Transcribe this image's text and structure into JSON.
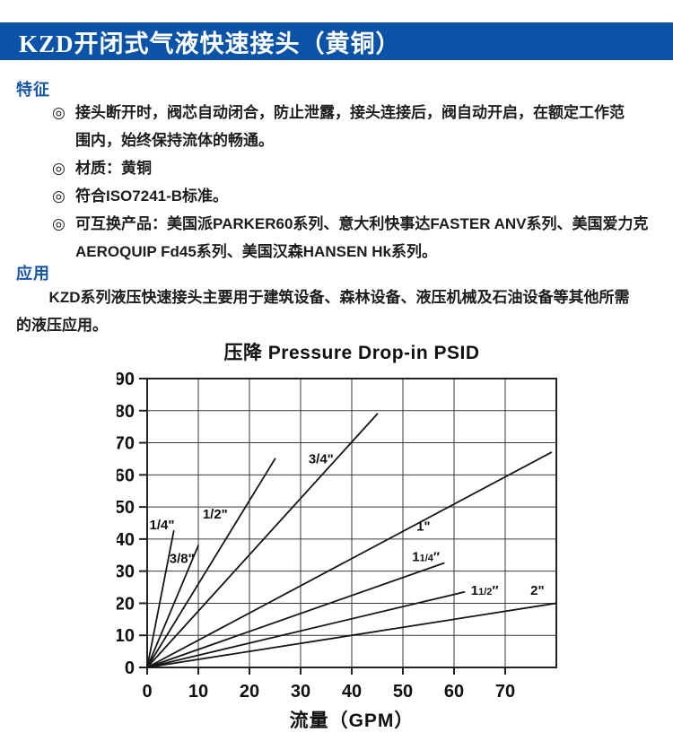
{
  "accent_blue": "#0b53a6",
  "header": {
    "title": "KZD开闭式气液快速接头（黄铜）",
    "bg_color": "#0b53a6",
    "text_color": "#ffffff"
  },
  "features": {
    "heading": "特征",
    "bullet_symbol": "◎",
    "items": [
      {
        "text": "接头断开时，阀芯自动闭合，防止泄露，接头连接后，阀自动开启，在额定工作范\n围内，始终保持流体的畅通。"
      },
      {
        "text": "材质：黄铜"
      },
      {
        "text": "符合ISO7241-B标准。"
      },
      {
        "text": "可互换产品：美国派PARKER60系列、意大利快事达FASTER ANV系列、美国爱力克\nAEROQUIP Fd45系列、美国汉森HANSEN Hk系列。"
      }
    ]
  },
  "application": {
    "heading": "应用",
    "text": "KZD系列液压快速接头主要用于建筑设备、森林设备、液压机械及石油设备等其他所需\n的液压应用。"
  },
  "chart_data": {
    "type": "line",
    "title": "压降 Pressure Drop-in PSID",
    "xlabel": "流量（GPM）",
    "ylabel": "",
    "xlim": [
      0,
      80
    ],
    "ylim": [
      0,
      90
    ],
    "xticks": [
      0,
      10,
      20,
      30,
      40,
      50,
      60,
      70
    ],
    "yticks": [
      0,
      10,
      20,
      30,
      40,
      50,
      60,
      70,
      80,
      90
    ],
    "grid": true,
    "legend_position": "inline-labels",
    "series": [
      {
        "name": "1/4\"",
        "points": [
          [
            0,
            0
          ],
          [
            5.2,
            42.5
          ]
        ],
        "label": {
          "x": 2.9,
          "y": 44.5,
          "parts": [
            {
              "t": "1/4\""
            }
          ]
        }
      },
      {
        "name": "3/8\"",
        "points": [
          [
            0,
            0
          ],
          [
            10,
            38
          ]
        ],
        "label": {
          "x": 6.8,
          "y": 34.0,
          "parts": [
            {
              "t": "3/8\""
            }
          ]
        }
      },
      {
        "name": "1/2\"",
        "points": [
          [
            0,
            0
          ],
          [
            25,
            65
          ]
        ],
        "label": {
          "x": 13.3,
          "y": 47.8,
          "parts": [
            {
              "t": "1/2\""
            }
          ]
        }
      },
      {
        "name": "3/4\"",
        "points": [
          [
            0,
            0
          ],
          [
            45,
            79
          ]
        ],
        "label": {
          "x": 34.0,
          "y": 65.0,
          "parts": [
            {
              "t": "3/4\""
            }
          ]
        }
      },
      {
        "name": "1\"",
        "points": [
          [
            0,
            0
          ],
          [
            79,
            67
          ]
        ],
        "label": {
          "x": 54.0,
          "y": 44.0,
          "parts": [
            {
              "t": "1\""
            }
          ]
        }
      },
      {
        "name": "1 1/4\"",
        "points": [
          [
            0,
            0
          ],
          [
            58,
            32.5
          ]
        ],
        "label": {
          "x": 54.5,
          "y": 34.5,
          "parts": [
            {
              "t": "1"
            },
            {
              "t": "1/4",
              "small": true
            },
            {
              "t": "″"
            }
          ]
        }
      },
      {
        "name": "1 1/2\"",
        "points": [
          [
            0,
            0
          ],
          [
            62,
            23.5
          ]
        ],
        "label": {
          "x": 66.0,
          "y": 24.0,
          "parts": [
            {
              "t": "1"
            },
            {
              "t": "1/2",
              "small": true
            },
            {
              "t": "″"
            }
          ]
        }
      },
      {
        "name": "2\"",
        "points": [
          [
            0,
            0
          ],
          [
            80,
            20
          ]
        ],
        "label": {
          "x": 76.3,
          "y": 24.0,
          "parts": [
            {
              "t": "2\""
            }
          ]
        }
      }
    ]
  }
}
